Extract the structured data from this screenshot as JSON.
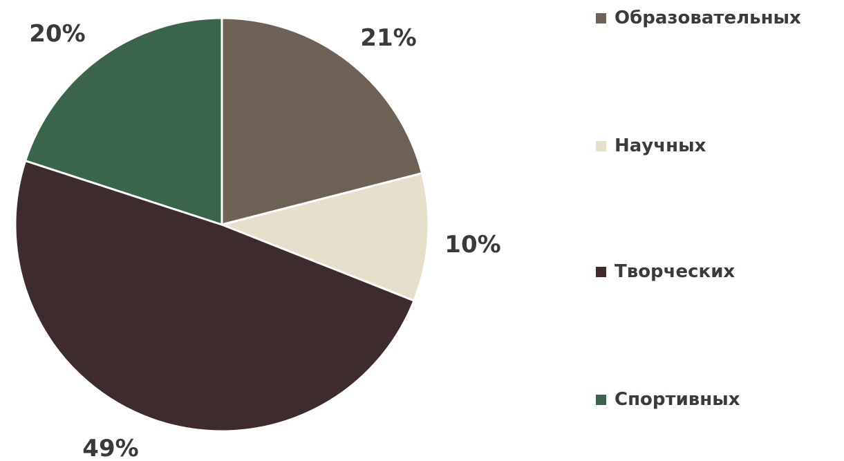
{
  "chart_data": {
    "type": "pie",
    "categories": [
      "Образовательных",
      "Научных",
      "Творческих",
      "Спортивных"
    ],
    "values": [
      21,
      10,
      49,
      20
    ],
    "value_labels": [
      "21%",
      "10%",
      "49%",
      "20%"
    ],
    "colors": [
      "#6e6156",
      "#e6dfcc",
      "#3e2b2e",
      "#3a654a"
    ],
    "start_angle_deg": 0,
    "direction": "clockwise",
    "slice_border_color": "#ffffff",
    "legend_position": "right"
  }
}
